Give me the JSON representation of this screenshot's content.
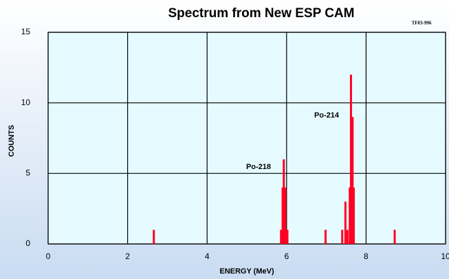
{
  "chart_data": {
    "type": "bar",
    "title": "Spectrum from New ESP CAM",
    "code": "TF03-996",
    "x_label": "ENERGY (MeV)",
    "y_label": "COUNTS",
    "x": [
      2.66,
      5.86,
      5.9,
      5.93,
      5.97,
      6.02,
      6.98,
      7.4,
      7.48,
      7.53,
      7.59,
      7.62,
      7.66,
      7.69,
      8.72
    ],
    "values": [
      1,
      1,
      4,
      6,
      4,
      1,
      1,
      1,
      3,
      1,
      4,
      12,
      9,
      4,
      1
    ],
    "color": "#ff0022",
    "xlim": [
      0,
      10
    ],
    "xticks": [
      0,
      2,
      4,
      6,
      8,
      10
    ],
    "ylim": [
      0,
      15
    ],
    "yticks": [
      0,
      5,
      10,
      15
    ],
    "grid": true,
    "annotations": [
      "Po-218",
      "Po-214"
    ]
  }
}
